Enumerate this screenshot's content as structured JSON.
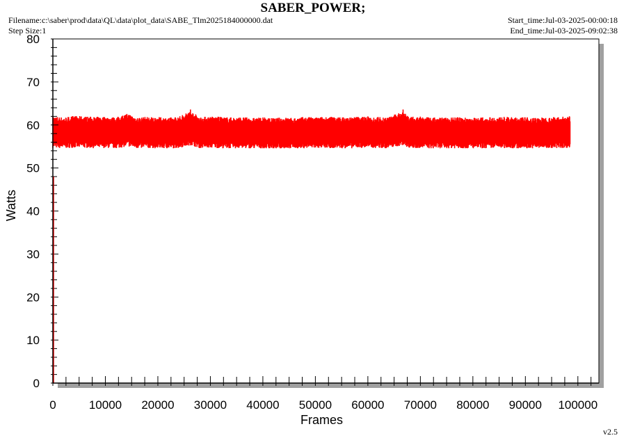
{
  "header": {
    "title": "SABER_POWER;",
    "filename": "Filename:c:\\saber\\prod\\data\\QL\\data\\plot_data\\SABE_Tlm2025184000000.dat",
    "step_size": "Step Size:1",
    "start_time": "Start_time:Jul-03-2025-00:00:18",
    "end_time": "End_time:Jul-03-2025-09:02:38"
  },
  "version": "v2.5",
  "colors": {
    "series": "#ff0000",
    "plot_bg": "#ffffff",
    "shadow": "#a0a0a0",
    "frame": "#000000"
  },
  "chart_data": {
    "type": "line",
    "title": "SABER_POWER;",
    "xlabel": "Frames",
    "ylabel": "Watts",
    "xlim": [
      0,
      104000
    ],
    "ylim": [
      0,
      80
    ],
    "x_ticks": [
      0,
      10000,
      20000,
      30000,
      40000,
      50000,
      60000,
      70000,
      80000,
      90000,
      100000
    ],
    "y_ticks": [
      0,
      10,
      20,
      30,
      40,
      50,
      60,
      70,
      80
    ],
    "grid": false,
    "series": [
      {
        "x_range": [
          0,
          98500
        ],
        "mean": 58.2,
        "band_low": 55.3,
        "band_high": 61.2,
        "min": 54.6,
        "max": 63.6,
        "values": [
          [
            0,
            58.5
          ],
          [
            2000,
            58.0
          ],
          [
            4000,
            58.6
          ],
          [
            6000,
            58.4
          ],
          [
            8000,
            58.2
          ],
          [
            10000,
            58.3
          ],
          [
            12000,
            58.0
          ],
          [
            14300,
            59.5
          ],
          [
            16000,
            58.0
          ],
          [
            18000,
            58.2
          ],
          [
            20000,
            58.1
          ],
          [
            22000,
            57.9
          ],
          [
            24000,
            58.3
          ],
          [
            26200,
            60.5
          ],
          [
            28000,
            58.2
          ],
          [
            30000,
            58.4
          ],
          [
            32000,
            58.2
          ],
          [
            34000,
            58.0
          ],
          [
            36000,
            58.1
          ],
          [
            38000,
            57.8
          ],
          [
            40000,
            58.0
          ],
          [
            42000,
            57.7
          ],
          [
            44000,
            58.0
          ],
          [
            46000,
            57.8
          ],
          [
            48000,
            58.2
          ],
          [
            50000,
            58.0
          ],
          [
            52000,
            58.3
          ],
          [
            54000,
            58.2
          ],
          [
            56000,
            58.0
          ],
          [
            58000,
            58.3
          ],
          [
            60000,
            58.4
          ],
          [
            62000,
            58.2
          ],
          [
            64000,
            58.1
          ],
          [
            66700,
            60.5
          ],
          [
            68000,
            58.2
          ],
          [
            70000,
            58.3
          ],
          [
            72000,
            57.9
          ],
          [
            74000,
            58.0
          ],
          [
            76000,
            58.1
          ],
          [
            78000,
            58.0
          ],
          [
            80000,
            57.9
          ],
          [
            82000,
            58.0
          ],
          [
            84000,
            58.1
          ],
          [
            86000,
            58.2
          ],
          [
            88000,
            58.0
          ],
          [
            90000,
            58.1
          ],
          [
            92000,
            57.9
          ],
          [
            94000,
            58.0
          ],
          [
            96000,
            58.2
          ],
          [
            98500,
            58.5
          ]
        ]
      }
    ]
  }
}
